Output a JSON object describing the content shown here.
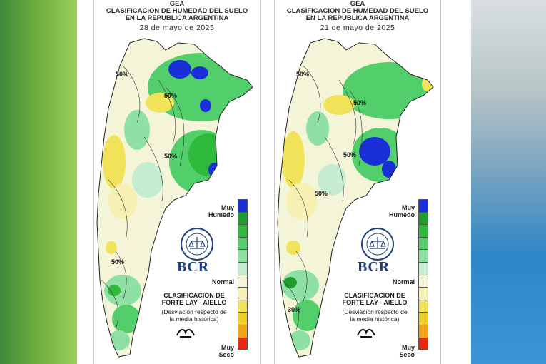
{
  "panels": [
    {
      "org": "GEA",
      "title_line1": "CLASIFICACION DE HUMEDAD DEL SUELO",
      "title_line2": "EN LA REPUBLICA ARGENTINA",
      "date": "28 de mayo de 2025",
      "contour_labels": [
        "50%",
        "50%",
        "50%",
        "50%"
      ]
    },
    {
      "org": "GEA",
      "title_line1": "CLASIFICACION DE HUMEDAD DEL SUELO",
      "title_line2": "EN LA REPUBLICA ARGENTINA",
      "date": "21 de mayo de 2025",
      "contour_labels": [
        "50%",
        "50%",
        "50%",
        "50%",
        "30%"
      ]
    }
  ],
  "legend": {
    "top_label_1": "Muy",
    "top_label_2": "Humedo",
    "mid_label": "Normal",
    "bottom_label_1": "Muy",
    "bottom_label_2": "Seco",
    "colors": [
      "#1a2fd8",
      "#1f9c2c",
      "#2fba3c",
      "#52cf6a",
      "#8fe0a5",
      "#c5ecd0",
      "#f3f4d8",
      "#f6f1b2",
      "#f0e35a",
      "#ecd02a",
      "#f0a419",
      "#e8280e"
    ]
  },
  "brand": {
    "name": "BCR"
  },
  "classification": {
    "line1": "CLASIFICACION DE",
    "line2": "FORTE LAY - AIELLO",
    "line3": "(Desviación respecto de",
    "line4": "la media histórica)"
  },
  "palette": {
    "very_wet": "#1a2fd8",
    "wet_dark": "#1f9c2c",
    "wet": "#52cf6a",
    "normal": "#f3f4d8",
    "dry": "#f0e35a",
    "very_dry": "#e8280e"
  }
}
